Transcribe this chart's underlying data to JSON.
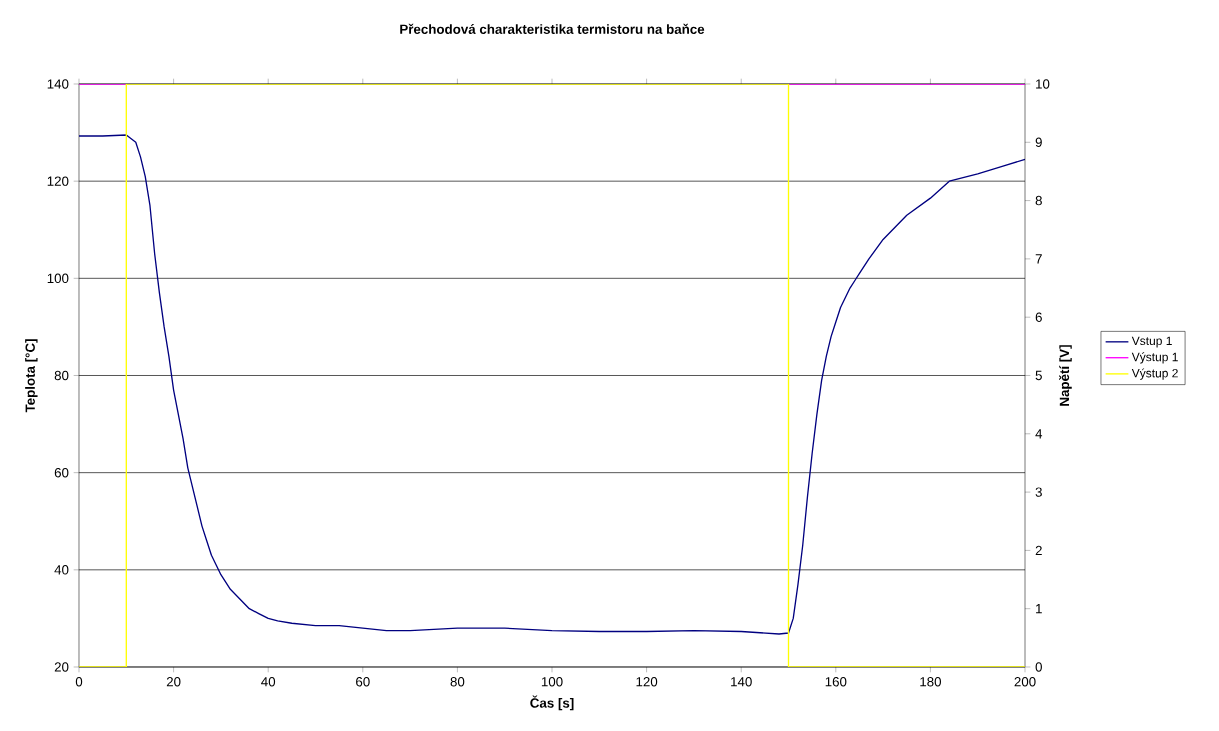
{
  "chart_data": {
    "type": "line",
    "title": "Přechodová charakteristika termistoru na baňce",
    "xlabel": "Čas [s]",
    "ylabel": "Teplota [°C]",
    "y2label": "Napětí [V]",
    "xlim": [
      0,
      200
    ],
    "xticks": [
      0,
      20,
      40,
      60,
      80,
      100,
      120,
      140,
      160,
      180,
      200
    ],
    "ylim": [
      20,
      140
    ],
    "yticks": [
      20,
      40,
      60,
      80,
      100,
      120,
      140
    ],
    "y2lim": [
      0,
      10
    ],
    "y2ticks": [
      0,
      1,
      2,
      3,
      4,
      5,
      6,
      7,
      8,
      9,
      10
    ],
    "grid": "y",
    "legend": "right",
    "series": [
      {
        "name": "Vstup 1",
        "color": "#000080",
        "x": [
          0,
          5,
          10,
          12,
          13,
          14,
          15,
          16,
          17,
          18,
          19,
          20,
          21,
          22,
          23,
          24,
          25,
          26,
          27,
          28,
          29,
          30,
          32,
          34,
          36,
          38,
          40,
          42,
          45,
          50,
          55,
          60,
          65,
          70,
          80,
          90,
          100,
          110,
          120,
          130,
          140,
          148,
          150,
          151,
          152,
          153,
          154,
          155,
          156,
          157,
          158,
          159,
          160,
          161,
          162,
          163,
          164,
          165,
          167,
          170,
          175,
          180,
          184,
          190,
          195,
          200
        ],
        "values": [
          129.3,
          129.3,
          129.5,
          128,
          125,
          121,
          115,
          105,
          97,
          90,
          84,
          77,
          72,
          67,
          61,
          57,
          53,
          49,
          46,
          43,
          41,
          39,
          36,
          34,
          32,
          31,
          30,
          29.5,
          29,
          28.5,
          28.5,
          28,
          27.5,
          27.5,
          28,
          28,
          27.5,
          27.3,
          27.3,
          27.5,
          27.3,
          26.8,
          27,
          30,
          37,
          45,
          55,
          64,
          72,
          79,
          84,
          88,
          91,
          94,
          96,
          98,
          99.5,
          101,
          104,
          108,
          113,
          116.5,
          120,
          121.5,
          123,
          124.5
        ]
      },
      {
        "name": "Výstup 1",
        "color": "#ff00ff",
        "axis": "y2",
        "x": [
          0,
          10,
          80,
          150,
          200
        ],
        "values": [
          10,
          10,
          null,
          10,
          10
        ]
      },
      {
        "name": "Výstup 2",
        "color": "#ffff00",
        "axis": "y2",
        "x": [
          0,
          10,
          10,
          150,
          150,
          200
        ],
        "values": [
          0,
          0,
          10,
          10,
          0,
          0
        ]
      }
    ]
  }
}
